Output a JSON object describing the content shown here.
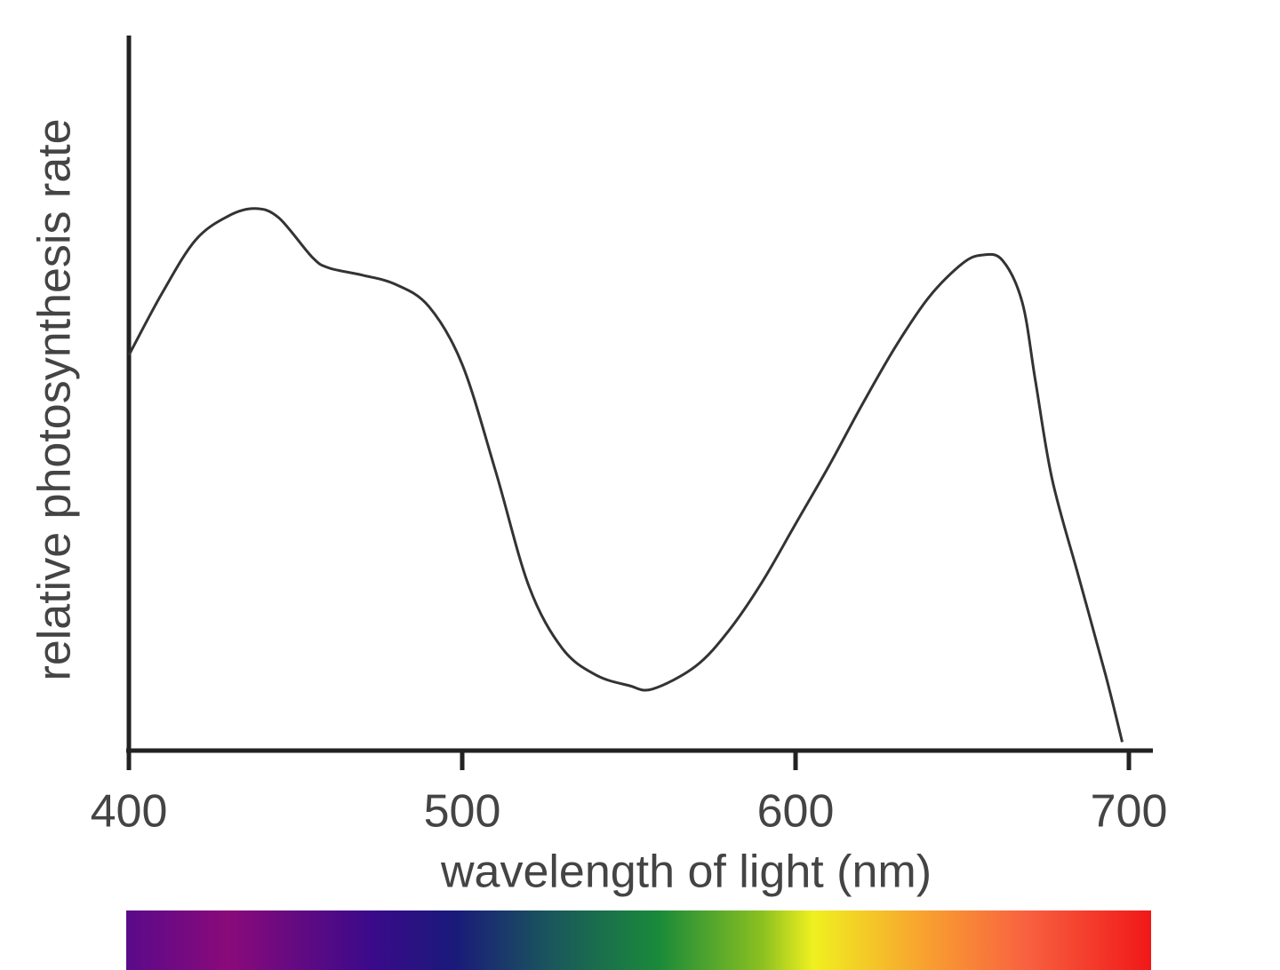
{
  "chart_data": {
    "type": "line",
    "x_label": "wavelength of light (nm)",
    "y_label": "relative photosynthesis rate",
    "xlim": [
      400,
      700
    ],
    "xticks": [
      400,
      500,
      600,
      700
    ],
    "ylim": [
      0,
      100
    ],
    "series": [
      {
        "color": "#333333",
        "x": [
          400,
          410,
          420,
          430,
          438,
          445,
          455,
          460,
          470,
          480,
          490,
          500,
          510,
          520,
          530,
          540,
          550,
          557,
          570,
          580,
          590,
          600,
          610,
          620,
          630,
          640,
          650,
          656,
          662,
          668,
          672,
          677,
          685,
          693,
          698
        ],
        "values": [
          55.3,
          64,
          71.4,
          74.8,
          75.8,
          74.5,
          69,
          67.5,
          66.5,
          65.2,
          62.1,
          54,
          39.1,
          23,
          14.3,
          10.6,
          9.1,
          8.6,
          11.8,
          16.8,
          23.6,
          31.7,
          39.8,
          48.4,
          56.5,
          63.4,
          68.1,
          69.3,
          68.6,
          62.7,
          51.6,
          37.9,
          24.2,
          10.6,
          1.2
        ]
      }
    ]
  }
}
